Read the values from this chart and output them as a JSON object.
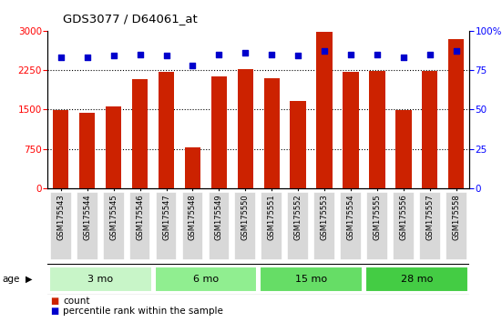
{
  "title": "GDS3077 / D64061_at",
  "samples": [
    "GSM175543",
    "GSM175544",
    "GSM175545",
    "GSM175546",
    "GSM175547",
    "GSM175548",
    "GSM175549",
    "GSM175550",
    "GSM175551",
    "GSM175552",
    "GSM175553",
    "GSM175554",
    "GSM175555",
    "GSM175556",
    "GSM175557",
    "GSM175558"
  ],
  "counts": [
    1490,
    1430,
    1550,
    2080,
    2210,
    780,
    2130,
    2260,
    2090,
    1670,
    2970,
    2210,
    2240,
    1490,
    2240,
    2830
  ],
  "percentiles": [
    83,
    83,
    84,
    85,
    84,
    78,
    85,
    86,
    85,
    84,
    87,
    85,
    85,
    83,
    85,
    87
  ],
  "bar_color": "#cc2200",
  "dot_color": "#0000cc",
  "age_groups": [
    {
      "label": "3 mo",
      "start": 0,
      "end": 4,
      "color": "#c8f5c8"
    },
    {
      "label": "6 mo",
      "start": 4,
      "end": 8,
      "color": "#90ee90"
    },
    {
      "label": "15 mo",
      "start": 8,
      "end": 12,
      "color": "#66dd66"
    },
    {
      "label": "28 mo",
      "start": 12,
      "end": 16,
      "color": "#44cc44"
    }
  ],
  "ylim_left": [
    0,
    3000
  ],
  "ylim_right": [
    0,
    100
  ],
  "yticks_left": [
    0,
    750,
    1500,
    2250,
    3000
  ],
  "yticks_right": [
    0,
    25,
    50,
    75,
    100
  ],
  "label_bg_color": "#d8d8d8",
  "plot_bg": "#ffffff"
}
